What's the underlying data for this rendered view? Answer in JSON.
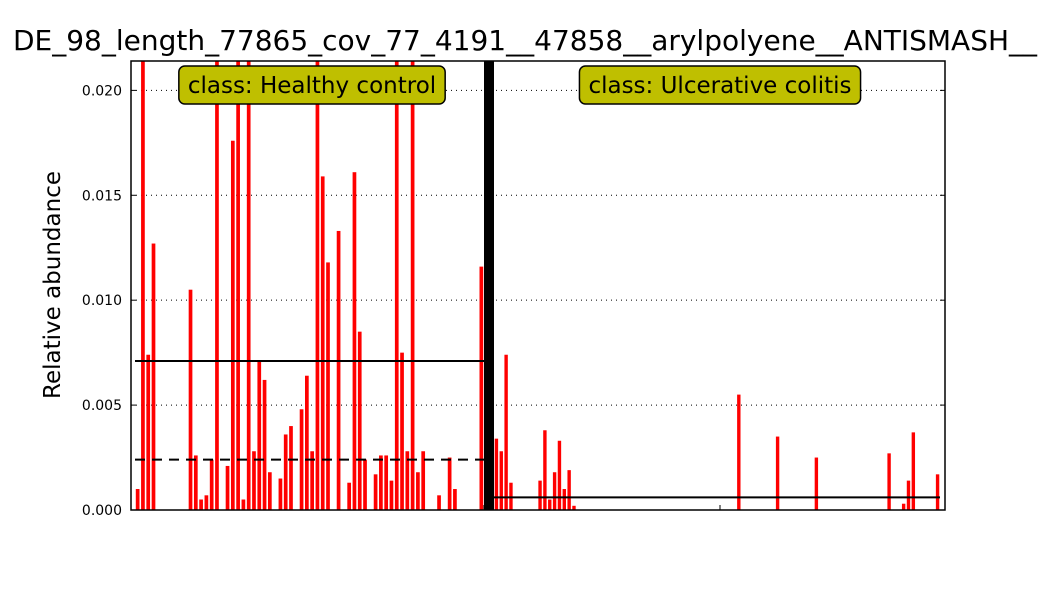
{
  "chart_data": {
    "type": "bar",
    "title": "DE_98_length_77865_cov_77_4191__47858__arylpolyene__ANTISMASH__",
    "ylabel": "Relative abundance",
    "xlabel": "",
    "ylim": [
      0,
      0.0214
    ],
    "yticks": [
      "0.000",
      "0.005",
      "0.010",
      "0.015",
      "0.020"
    ],
    "grid": "horizontal dotted",
    "bar_color": "#ff0000",
    "box_color": "#bfbf00",
    "classes": [
      {
        "label": "class: Healthy control",
        "mean": 0.0071,
        "median": 0.0024,
        "values": [
          0.001,
          0.0214,
          0.0074,
          0.0127,
          0,
          0,
          0,
          0,
          0,
          0,
          0.0105,
          0.0026,
          0.0005,
          0.0007,
          0.0024,
          0.0214,
          0,
          0.0021,
          0.0176,
          0.0214,
          0.0005,
          0.0214,
          0.0028,
          0.0071,
          0.0062,
          0.0018,
          0,
          0.0015,
          0.0036,
          0.004,
          0,
          0.0048,
          0.0064,
          0.0028,
          0.0214,
          0.0159,
          0.0118,
          0,
          0.0133,
          0,
          0.0013,
          0.0161,
          0.0085,
          0.0024,
          0,
          0.0017,
          0.0026,
          0.0026,
          0.0014,
          0.0214,
          0.0075,
          0.0028,
          0.0214,
          0.0018,
          0.0028,
          0,
          0,
          0.0007,
          0,
          0.0025,
          0.001,
          0,
          0,
          0,
          0,
          0.0116
        ]
      },
      {
        "label": "class: Ulcerative colitis",
        "mean": 0.0006,
        "median": 0,
        "values": [
          0.0034,
          0.0028,
          0.0074,
          0.0013,
          0,
          0,
          0,
          0,
          0,
          0.0014,
          0.0038,
          0.0005,
          0.0018,
          0.0033,
          0.001,
          0.0019,
          0.0002,
          0,
          0,
          0,
          0,
          0,
          0,
          0,
          0,
          0,
          0,
          0,
          0,
          0,
          0,
          0,
          0,
          0,
          0,
          0,
          0,
          0,
          0,
          0,
          0,
          0,
          0,
          0,
          0,
          0,
          0,
          0,
          0,
          0,
          0.0055,
          0,
          0,
          0,
          0,
          0,
          0,
          0,
          0.0035,
          0,
          0,
          0,
          0,
          0,
          0,
          0,
          0.0025,
          0,
          0,
          0,
          0,
          0,
          0,
          0,
          0,
          0,
          0,
          0,
          0,
          0,
          0,
          0.0027,
          0,
          0,
          0.0003,
          0.0014,
          0.0037,
          0,
          0,
          0,
          0,
          0.0017
        ]
      }
    ]
  }
}
